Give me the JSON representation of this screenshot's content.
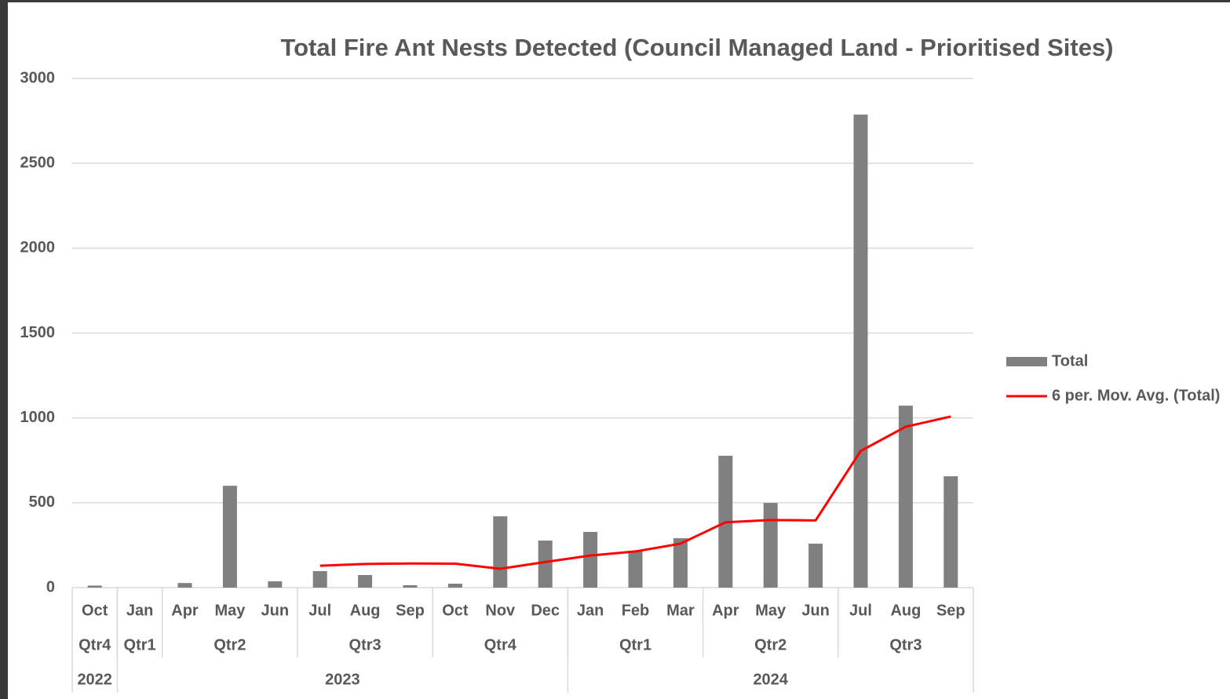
{
  "chart_data": {
    "type": "bar",
    "title": "Total Fire Ant Nests Detected (Council Managed Land - Prioritised Sites)",
    "categories": [
      "Oct",
      "Jan",
      "Apr",
      "May",
      "Jun",
      "Jul",
      "Aug",
      "Sep",
      "Oct",
      "Nov",
      "Dec",
      "Jan",
      "Feb",
      "Mar",
      "Apr",
      "May",
      "Jun",
      "Jul",
      "Aug",
      "Sep"
    ],
    "quarter_groups": [
      {
        "label": "Qtr4",
        "span": 1
      },
      {
        "label": "Qtr1",
        "span": 1
      },
      {
        "label": "Qtr2",
        "span": 3
      },
      {
        "label": "Qtr3",
        "span": 3
      },
      {
        "label": "Qtr4",
        "span": 3
      },
      {
        "label": "Qtr1",
        "span": 3
      },
      {
        "label": "Qtr2",
        "span": 3
      },
      {
        "label": "Qtr3",
        "span": 3
      }
    ],
    "year_groups": [
      {
        "label": "2022",
        "span": 1
      },
      {
        "label": "2023",
        "span": 10
      },
      {
        "label": "2024",
        "span": 9
      }
    ],
    "series": [
      {
        "name": "Total",
        "type": "bar",
        "color": "#808080",
        "values": [
          12,
          0,
          27,
          600,
          37,
          97,
          74,
          14,
          23,
          420,
          277,
          328,
          217,
          291,
          777,
          499,
          259,
          2787,
          1072,
          656
        ]
      },
      {
        "name": "6 per. Mov. Avg. (Total)",
        "type": "line",
        "color": "#ff0000",
        "values": [
          null,
          null,
          null,
          null,
          null,
          129,
          139,
          142,
          141,
          111,
          151,
          189,
          213,
          259,
          385,
          398,
          396,
          805,
          948,
          1008
        ]
      }
    ],
    "ylim": [
      0,
      3000
    ],
    "yticks": [
      0,
      500,
      1000,
      1500,
      2000,
      2500,
      3000
    ],
    "grid": true,
    "legend": "right"
  }
}
